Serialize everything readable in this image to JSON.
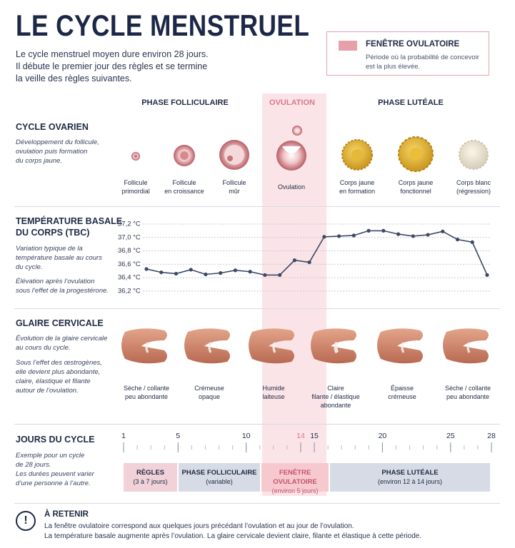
{
  "header": {
    "title": "LE CYCLE MENSTRUEL",
    "intro": [
      "Le cycle menstruel moyen dure environ 28 jours.",
      "Il débute le premier jour des règles et se termine",
      "la veille des règles suivantes."
    ]
  },
  "legend": {
    "title": "FENÊTRE OVULATOIRE",
    "text": [
      "Période où la probabilité de concevoir",
      "est la plus élevée."
    ]
  },
  "phases": [
    "PHASE FOLLICULAIRE",
    "OVULATION",
    "PHASE LUTÉALE"
  ],
  "ovarian": {
    "title": "CYCLE OVARIEN",
    "description": [
      "Développement du follicule,",
      "ovulation puis formation",
      "du corps jaune."
    ],
    "stages": [
      [
        "Follicule",
        "primordial"
      ],
      [
        "Follicule",
        "en croissance"
      ],
      [
        "Follicule",
        "mûr"
      ],
      [
        "Ovulation"
      ],
      [
        "Corps jaune",
        "en formation"
      ],
      [
        "Corps jaune",
        "fonctionnel"
      ],
      [
        "Corps blanc",
        "(régression)"
      ]
    ]
  },
  "temperature": {
    "title": [
      "TEMPÉRATURE BASALE",
      "DU CORPS (TBC)"
    ],
    "description": [
      "Variation typique de la",
      "température basale au cours",
      "du cycle."
    ],
    "note": [
      "Élévation après l’ovulation",
      "sous l’effet de la progestérone."
    ]
  },
  "chart_data": {
    "type": "line",
    "color": "#3d4a66",
    "values": [
      36.53,
      36.48,
      36.46,
      36.52,
      36.45,
      36.47,
      36.51,
      36.49,
      36.44,
      36.44,
      36.66,
      36.63,
      37.01,
      37.02,
      37.03,
      37.1,
      37.1,
      37.05,
      37.02,
      37.04,
      37.09,
      36.97,
      36.93,
      36.44
    ],
    "ylim": [
      36.2,
      37.2
    ],
    "yticks": [
      {
        "value": 36.2,
        "label": "36,2 °C"
      },
      {
        "value": 36.4,
        "label": "36,4 °C"
      },
      {
        "value": 36.6,
        "label": "36,6 °C"
      },
      {
        "value": 36.8,
        "label": "36,8 °C"
      },
      {
        "value": 37,
        "label": "37,0 °C"
      },
      {
        "value": 37.2,
        "label": "37,2 °C"
      }
    ],
    "grid": true
  },
  "mucus": {
    "title": "GLAIRE CERVICALE",
    "description": [
      "Évolution de la glaire cervicale",
      "au cours du cycle."
    ],
    "note": [
      "Sous l’effet des œstrogènes,",
      "elle devient plus abondante,",
      "claire, élastique et filante",
      "autour de l’ovulation."
    ],
    "stages": [
      [
        "Sèche / collante",
        "peu abondante"
      ],
      [
        "Crémeuse",
        "opaque"
      ],
      [
        "Humide",
        "laiteuse"
      ],
      [
        "Claire",
        "filante / élastique",
        "abondante"
      ],
      [
        "Épaisse",
        "crémeuse"
      ],
      [
        "Sèche / collante",
        "peu abondante"
      ]
    ]
  },
  "days": {
    "title": "JOURS DU CYCLE",
    "description": [
      "Exemple pour un cycle",
      "de 28 jours.",
      "Les durées peuvent varier",
      "d’une personne à l’autre."
    ],
    "ticks": [
      1,
      5,
      10,
      14,
      15,
      20,
      25,
      28
    ],
    "bars": [
      {
        "label": "RÈGLES",
        "sub": "(3 à 7 jours)"
      },
      {
        "label": "PHASE FOLLICULAIRE",
        "sub": "(variable)"
      },
      {
        "label": "FENÊTRE OVULATOIRE",
        "sub": "(environ 5 jours)"
      },
      {
        "label": "PHASE LUTÉALE",
        "sub": "(environ 12 à 14 jours)"
      }
    ]
  },
  "retain": {
    "title": "À RETENIR",
    "lines": [
      "La fenêtre ovulatoire correspond aux quelques jours précédant l’ovulation et au jour de l’ovulation.",
      "La température basale augmente après l’ovulation. La glaire cervicale devient claire, filante et élastique à cette période."
    ]
  }
}
